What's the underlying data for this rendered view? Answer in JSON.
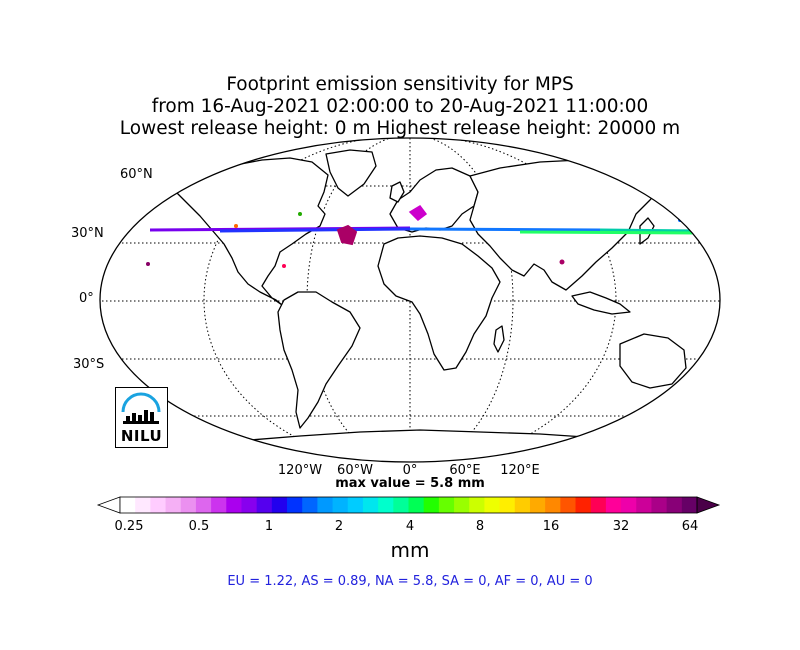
{
  "title": {
    "line1": "Footprint emission sensitivity for MPS",
    "line2": "from 16-Aug-2021 02:00:00 to 20-Aug-2021 11:00:00",
    "line3": "Lowest release height: 0 m      Highest release height: 20000 m"
  },
  "lat_labels": [
    "60°N",
    "30°N",
    "0°",
    "30°S"
  ],
  "lon_labels": [
    "120°W",
    "60°W",
    "0°",
    "60°E",
    "120°E"
  ],
  "max_value": "max value = 5.8 mm",
  "colorbar": {
    "ticks": [
      "0.25",
      "0.5",
      "1",
      "2",
      "4",
      "8",
      "16",
      "32",
      "64"
    ],
    "unit": "mm",
    "colors": [
      "#ffffff",
      "#ffe8ff",
      "#ffccff",
      "#f5b0f5",
      "#eb90f0",
      "#dd66ee",
      "#cc33ee",
      "#aa00ee",
      "#8800ee",
      "#5500ee",
      "#2200ee",
      "#0033ff",
      "#0066ff",
      "#0099ff",
      "#00b3ff",
      "#00ccff",
      "#00e6ee",
      "#00ffcc",
      "#00ff99",
      "#00ff55",
      "#22ff00",
      "#66ff00",
      "#99ff00",
      "#ccff00",
      "#eeff00",
      "#ffee00",
      "#ffcc00",
      "#ffaa00",
      "#ff8800",
      "#ff5500",
      "#ff2200",
      "#ff0055",
      "#ff0099",
      "#ee00aa",
      "#cc0099",
      "#aa0088",
      "#880077",
      "#660066"
    ]
  },
  "summary": "EU = 1.22,  AS = 0.89,  NA = 5.8,  SA = 0,  AF = 0,  AU = 0",
  "logo": {
    "text": "NILU"
  }
}
